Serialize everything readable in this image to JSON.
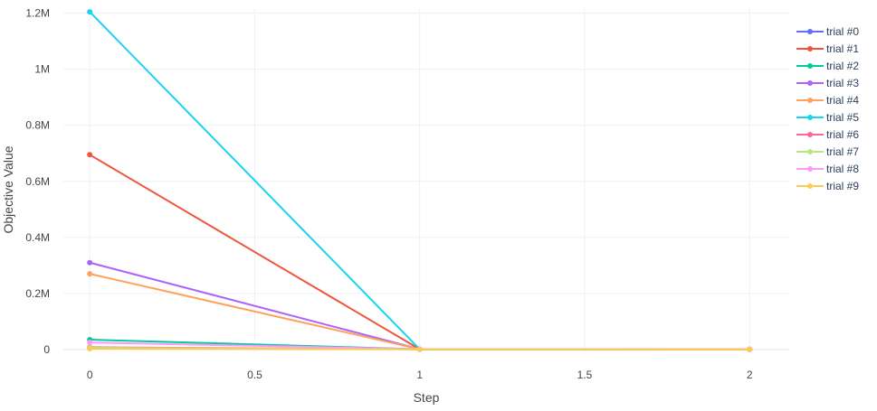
{
  "chart_data": {
    "type": "line",
    "title": "",
    "xlabel": "Step",
    "ylabel": "Objective Value",
    "xlim": [
      -0.08,
      2.12
    ],
    "ylim": [
      -10000,
      1215000
    ],
    "x_ticks": [
      0,
      0.5,
      1,
      1.5,
      2
    ],
    "x_tick_labels": [
      "0",
      "0.5",
      "1",
      "1.5",
      "2"
    ],
    "y_ticks": [
      0,
      200000,
      400000,
      600000,
      800000,
      1000000,
      1200000
    ],
    "y_tick_labels": [
      "0",
      "0.2M",
      "0.4M",
      "0.6M",
      "0.8M",
      "1M",
      "1.2M"
    ],
    "grid": true,
    "legend_position": "right",
    "series": [
      {
        "name": "trial #0",
        "color": "#636efa",
        "x": [
          0,
          1,
          2
        ],
        "y": [
          5000,
          1000,
          500
        ]
      },
      {
        "name": "trial #1",
        "color": "#EF553B",
        "x": [
          0,
          1,
          2
        ],
        "y": [
          695000,
          1000,
          500
        ]
      },
      {
        "name": "trial #2",
        "color": "#00cc96",
        "x": [
          0,
          1,
          2
        ],
        "y": [
          35000,
          1000,
          500
        ]
      },
      {
        "name": "trial #3",
        "color": "#ab63fa",
        "x": [
          0,
          1,
          2
        ],
        "y": [
          310000,
          1000,
          500
        ]
      },
      {
        "name": "trial #4",
        "color": "#FFA15A",
        "x": [
          0,
          1,
          2
        ],
        "y": [
          270000,
          1000,
          500
        ]
      },
      {
        "name": "trial #5",
        "color": "#19d3f3",
        "x": [
          0,
          1,
          2
        ],
        "y": [
          1205000,
          1000,
          500
        ]
      },
      {
        "name": "trial #6",
        "color": "#FF6692",
        "x": [
          0,
          1,
          2
        ],
        "y": [
          8000,
          1000,
          500
        ]
      },
      {
        "name": "trial #7",
        "color": "#B6E880",
        "x": [
          0,
          1,
          2
        ],
        "y": [
          6000,
          1000,
          500
        ]
      },
      {
        "name": "trial #8",
        "color": "#FF97FF",
        "x": [
          0,
          1,
          2
        ],
        "y": [
          25000,
          1000,
          500
        ]
      },
      {
        "name": "trial #9",
        "color": "#FECB52",
        "x": [
          0,
          1,
          2
        ],
        "y": [
          3000,
          1000,
          500
        ]
      }
    ]
  }
}
